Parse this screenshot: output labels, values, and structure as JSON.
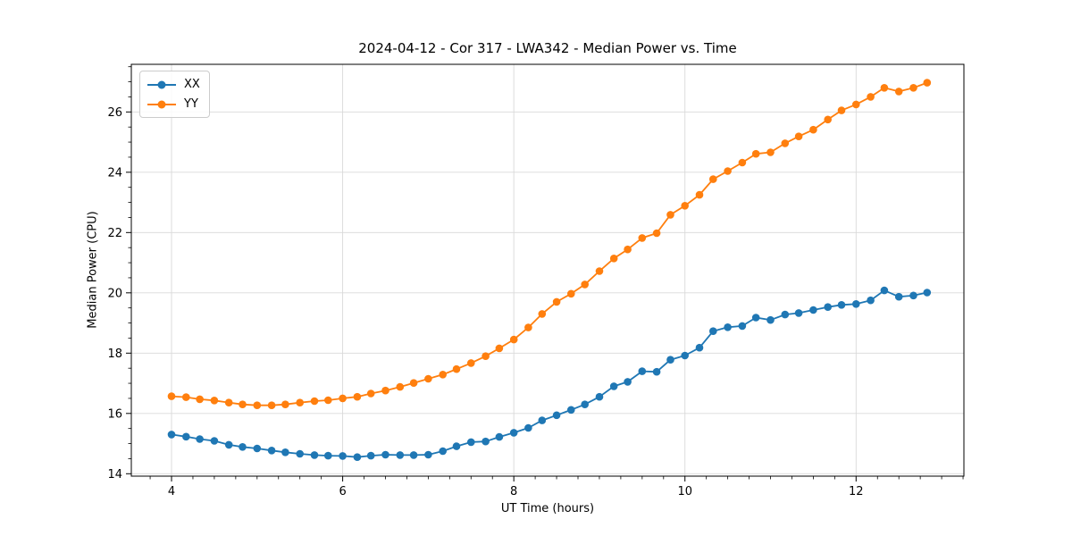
{
  "chart_data": {
    "type": "line",
    "title": "2024-04-12 - Cor 317 - LWA342 - Median Power vs. Time",
    "xlabel": "UT Time (hours)",
    "ylabel": "Median Power (CPU)",
    "xlim": [
      3.53,
      13.26
    ],
    "ylim": [
      13.92,
      27.58
    ],
    "xticks": [
      4,
      6,
      8,
      10,
      12
    ],
    "yticks": [
      14,
      16,
      18,
      20,
      22,
      24,
      26
    ],
    "x_minor_step": 0.25,
    "y_minor_step": 0.5,
    "grid": "major-both",
    "grid_color": "#d9d9d9",
    "legend_position": "upper-left",
    "background": "#ffffff",
    "x": [
      4.0,
      4.17,
      4.33,
      4.5,
      4.67,
      4.83,
      5.0,
      5.17,
      5.33,
      5.5,
      5.67,
      5.83,
      6.0,
      6.17,
      6.33,
      6.5,
      6.67,
      6.83,
      7.0,
      7.17,
      7.33,
      7.5,
      7.67,
      7.83,
      8.0,
      8.17,
      8.33,
      8.5,
      8.67,
      8.83,
      9.0,
      9.17,
      9.33,
      9.5,
      9.67,
      9.83,
      10.0,
      10.17,
      10.33,
      10.5,
      10.67,
      10.83,
      11.0,
      11.17,
      11.33,
      11.5,
      11.67,
      11.83,
      12.0,
      12.17,
      12.33,
      12.5,
      12.67,
      12.83
    ],
    "series": [
      {
        "name": "XX",
        "color": "#1f77b4",
        "values": [
          15.3,
          15.23,
          15.15,
          15.09,
          14.96,
          14.89,
          14.84,
          14.77,
          14.71,
          14.66,
          14.62,
          14.6,
          14.59,
          14.55,
          14.6,
          14.63,
          14.62,
          14.62,
          14.63,
          14.75,
          14.91,
          15.05,
          15.07,
          15.22,
          15.36,
          15.52,
          15.77,
          15.94,
          16.12,
          16.3,
          16.55,
          16.9,
          17.05,
          17.4,
          17.38,
          17.78,
          17.92,
          18.18,
          18.73,
          18.86,
          18.9,
          19.18,
          19.1,
          19.28,
          19.33,
          19.43,
          19.53,
          19.6,
          19.63,
          19.75,
          20.08,
          19.87,
          19.91,
          20.01
        ]
      },
      {
        "name": "YY",
        "color": "#ff7f0e",
        "values": [
          16.57,
          16.54,
          16.47,
          16.43,
          16.36,
          16.3,
          16.27,
          16.27,
          16.3,
          16.36,
          16.41,
          16.44,
          16.5,
          16.55,
          16.66,
          16.76,
          16.88,
          17.01,
          17.15,
          17.29,
          17.47,
          17.67,
          17.9,
          18.16,
          18.45,
          18.85,
          19.3,
          19.7,
          19.97,
          20.28,
          20.72,
          21.14,
          21.44,
          21.82,
          21.98,
          22.59,
          22.89,
          23.25,
          23.77,
          24.04,
          24.32,
          24.61,
          24.66,
          24.96,
          25.19,
          25.41,
          25.75,
          26.05,
          26.25,
          26.5,
          26.8,
          26.68,
          26.8,
          26.97
        ]
      }
    ]
  }
}
